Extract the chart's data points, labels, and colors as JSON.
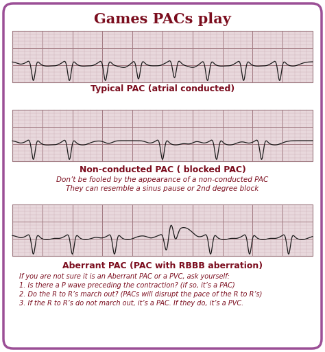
{
  "title": "Games PACs play",
  "title_color": "#7B0D1E",
  "title_fontsize": 15,
  "background_color": "#FFFFFF",
  "border_color": "#9B4F96",
  "strip1_label": "Typical PAC (atrial conducted)",
  "strip2_label": "Non-conducted PAC ( blocked PAC)",
  "strip2_italic1": "Don’t be fooled by the appearance of a non-conducted PAC",
  "strip2_italic2": "They can resemble a sinus pause or 2nd degree block",
  "strip3_label": "Aberrant PAC (PAC with RBBB aberration)",
  "note1": "If you are not sure it is an Aberrant PAC or a PVC, ask yourself:",
  "note2": "1. Is there a P wave preceding the contraction? (if so, it’s a PAC)",
  "note3": "2. Do the R to R’s march out? (PACs will disrupt the pace of the R to R’s)",
  "note4": "3. If the R to R’s do not march out, it’s a PAC. If they do, it’s a PVC.",
  "label_color": "#7B0D1E",
  "italic_color": "#7B0D1E",
  "note_color": "#7B0D1E",
  "ecg_grid_minor_color": "#C8A8B0",
  "ecg_grid_major_color": "#A07880",
  "ecg_line_color": "#1a1a1a",
  "ecg_bg_color": "#E8D8DC"
}
